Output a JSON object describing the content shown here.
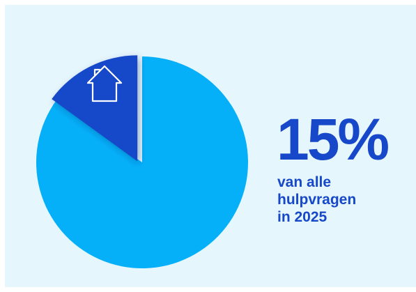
{
  "chart_data": {
    "type": "pie",
    "slices": [
      {
        "value": 15,
        "color": "#1648c9",
        "icon": "house-icon",
        "exploded": true
      },
      {
        "value": 85,
        "color": "#06b0f9"
      }
    ],
    "highlight_value": "15%",
    "caption_lines": [
      "van alle",
      "hulpvragen",
      "in 2025"
    ]
  },
  "colors": {
    "background": "#e6f6fd",
    "accent": "#1648c9",
    "main_slice": "#06b0f9"
  }
}
